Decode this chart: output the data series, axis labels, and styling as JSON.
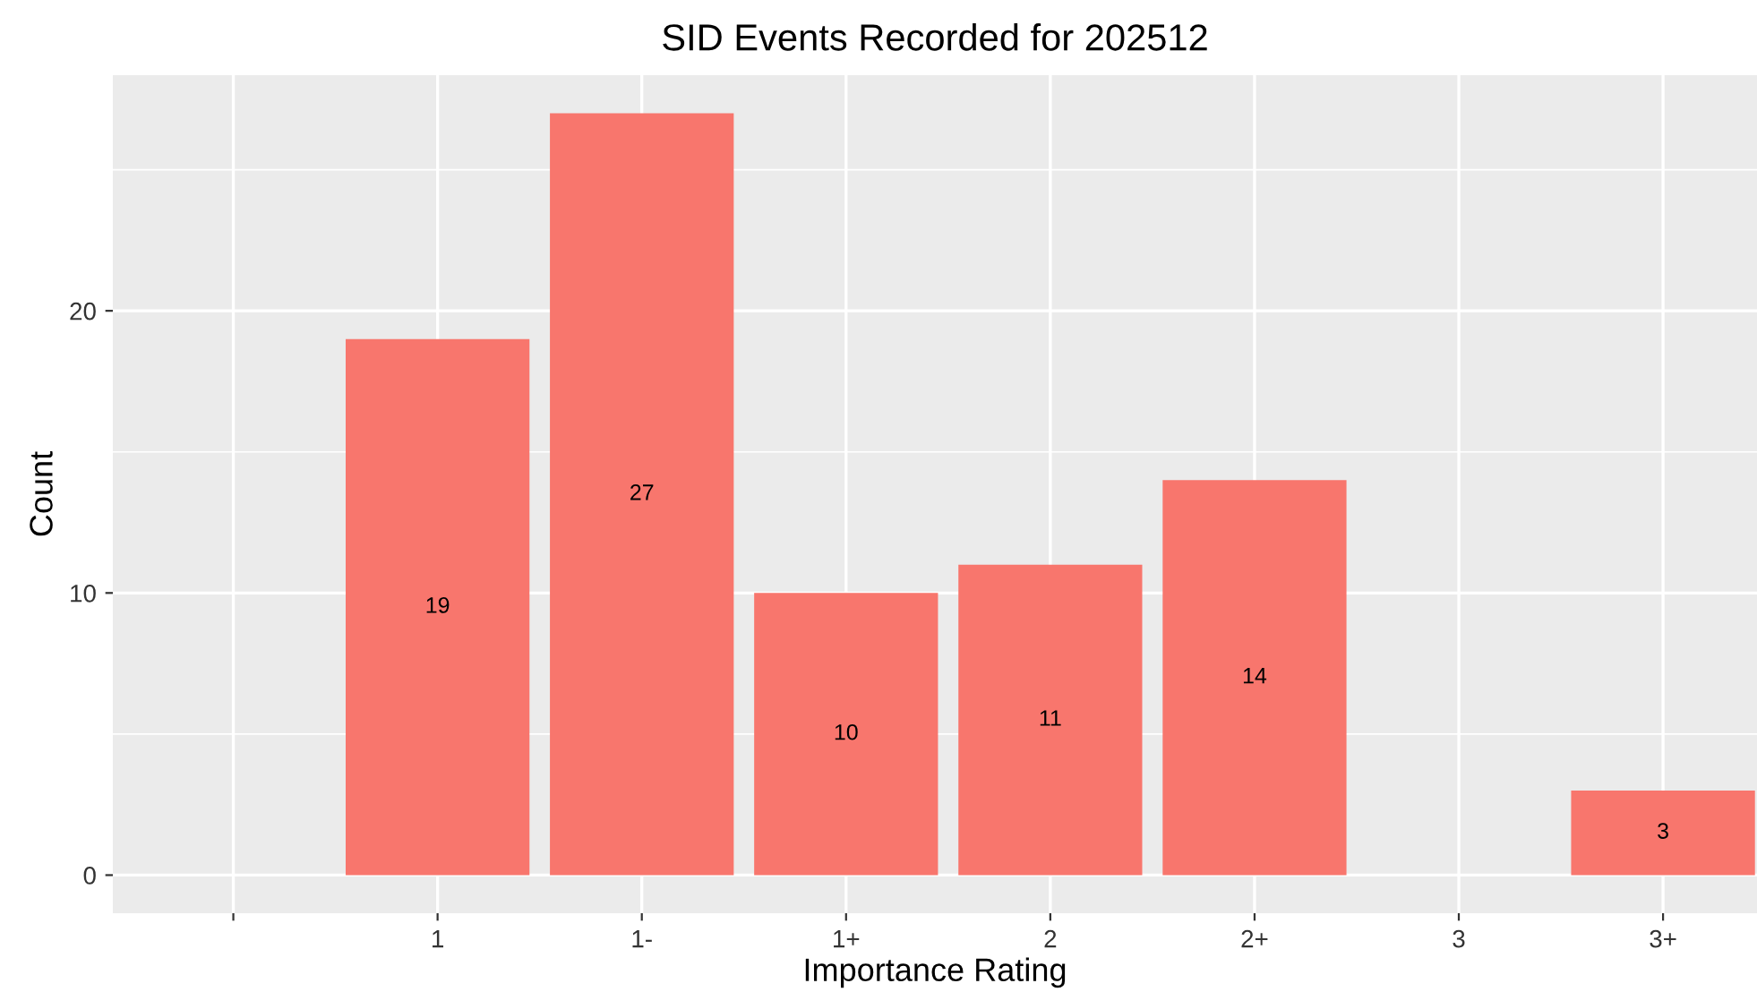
{
  "chart_data": {
    "type": "bar",
    "title": "SID Events Recorded for 202512",
    "xlabel": "Importance Rating",
    "ylabel": "Count",
    "categories": [
      null,
      "1",
      "1-",
      "1+",
      "2",
      "2+",
      "3",
      "3+"
    ],
    "values": [
      null,
      19,
      27,
      10,
      11,
      14,
      null,
      3
    ],
    "color": "#f8766d",
    "ylim": [
      -1.35,
      28.35
    ],
    "yticks": [
      0,
      10,
      20
    ],
    "grid": true,
    "data_labels": true,
    "legend": false
  }
}
